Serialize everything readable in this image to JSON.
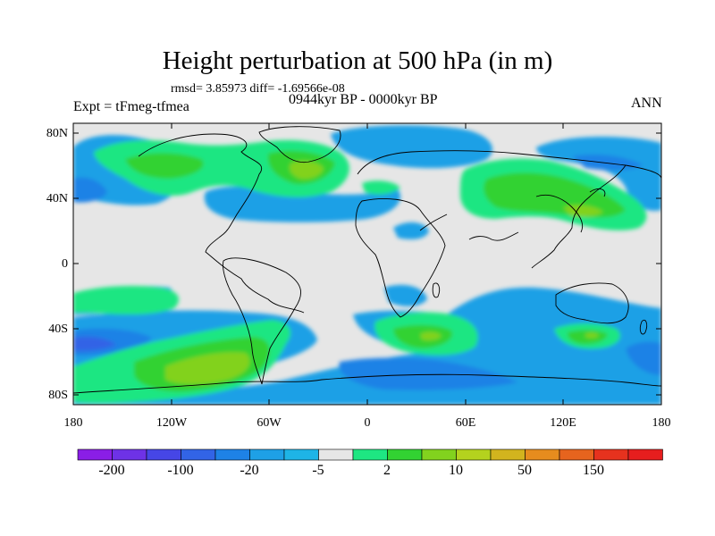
{
  "title": "Height perturbation at 500 hPa (in m)",
  "stats": "rmsd= 3.85973 diff= -1.69566e-08",
  "expt": "Expt = tFmeg-tfmea",
  "period": "0944kyr BP - 0000kyr BP",
  "season": "ANN",
  "lat_labels": [
    "80N",
    "40N",
    "0",
    "40S",
    "80S"
  ],
  "lon_labels": [
    "180",
    "120W",
    "60W",
    "0",
    "60E",
    "120E",
    "180"
  ],
  "colorbar": {
    "colors": [
      "#8a1ee6",
      "#6e32e6",
      "#4646e6",
      "#3264e6",
      "#1e82e6",
      "#1ea0e6",
      "#1eb4e6",
      "#e6e6e6",
      "#1ee682",
      "#32d232",
      "#82d21e",
      "#b4d21e",
      "#d2b41e",
      "#e68c1e",
      "#e6641e",
      "#e6321e",
      "#e61e1e"
    ],
    "labels": [
      "-200",
      "-100",
      "-20",
      "-5",
      "2",
      "10",
      "50",
      "150"
    ]
  }
}
